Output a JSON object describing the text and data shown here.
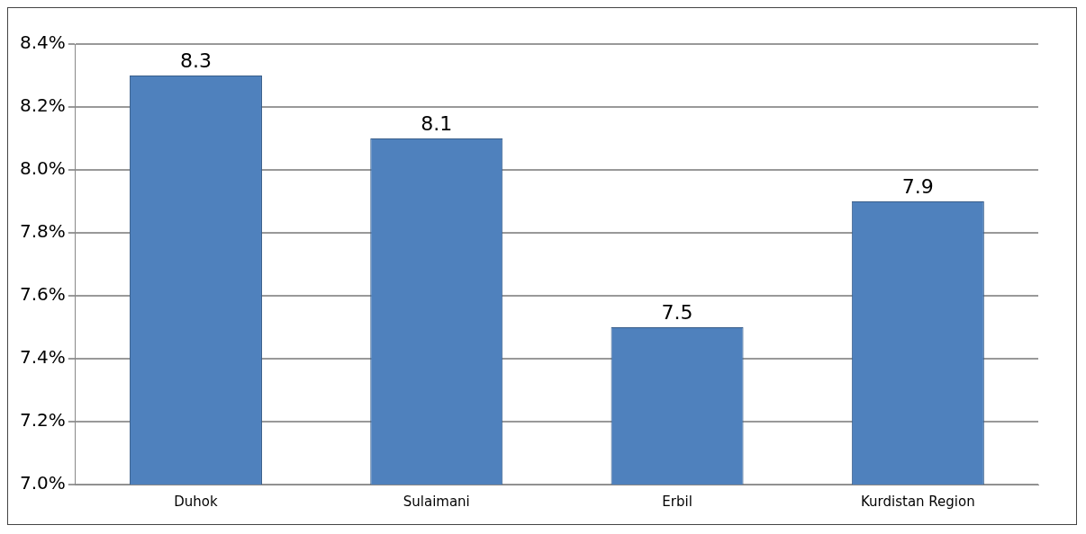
{
  "chart_data": {
    "type": "bar",
    "categories": [
      "Duhok",
      "Sulaimani",
      "Erbil",
      "Kurdistan Region"
    ],
    "values": [
      8.3,
      8.1,
      7.5,
      7.9
    ],
    "color": "#4f81bd",
    "ylim": [
      7.0,
      8.4
    ],
    "yticks": [
      {
        "value": 7.0,
        "label": "7.0%"
      },
      {
        "value": 7.2,
        "label": "7.2%"
      },
      {
        "value": 7.4,
        "label": "7.4%"
      },
      {
        "value": 7.6,
        "label": "7.6%"
      },
      {
        "value": 7.8,
        "label": "7.8%"
      },
      {
        "value": 8.0,
        "label": "8.0%"
      },
      {
        "value": 8.2,
        "label": "8.2%"
      },
      {
        "value": 8.4,
        "label": "8.4%"
      }
    ],
    "grid": "y",
    "data_labels": true,
    "legend": false
  }
}
